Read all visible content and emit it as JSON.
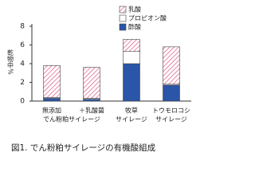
{
  "chart_data": {
    "type": "stacked_bar",
    "caption": "図1. でん粉粕サイレージの有機酸組成",
    "y_label": "乾物中%",
    "categories": [
      "無添加",
      "＋乳酸菌",
      "牧草",
      "トウモロコシ"
    ],
    "subcategories": [
      "でん粉粕サイレージ",
      null,
      "サイレージ",
      "サイレージ"
    ],
    "series": [
      {
        "name": "酢酸",
        "color": "#2a55a8",
        "pattern": "solid",
        "values": [
          0.3,
          0.2,
          4.0,
          1.7
        ]
      },
      {
        "name": "プロピオン酸",
        "color": "#ffffff",
        "pattern": "solid",
        "values": [
          0.1,
          0.1,
          1.3,
          0.1
        ]
      },
      {
        "name": "乳酸",
        "color": "#d9477e",
        "pattern": "hatch",
        "values": [
          3.4,
          3.3,
          1.3,
          4.0
        ]
      }
    ],
    "ylim": [
      0,
      8
    ],
    "yticks": [
      0,
      2,
      4,
      6,
      8
    ]
  }
}
